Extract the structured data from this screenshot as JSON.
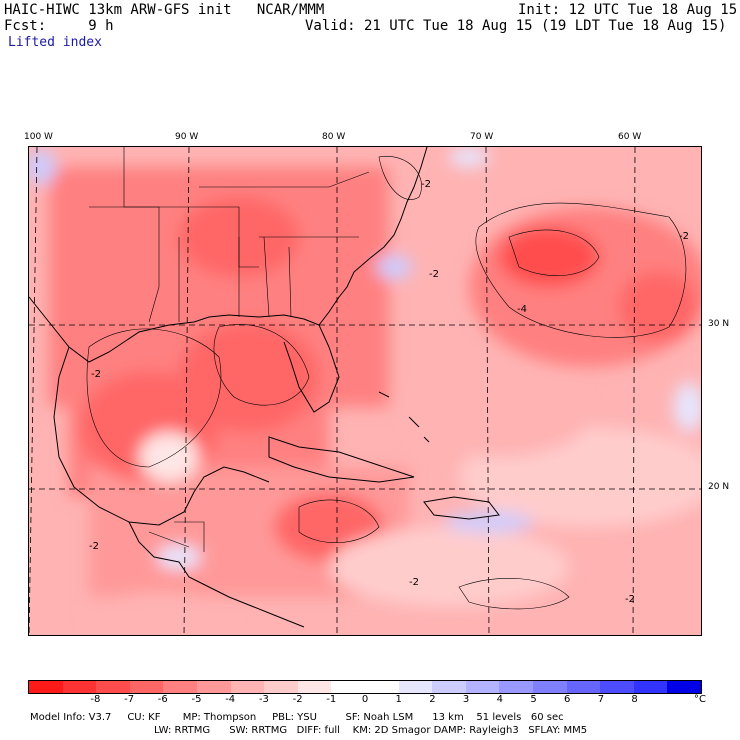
{
  "header": {
    "title": "HAIC-HIWC 13km ARW-GFS init   NCAR/MMM",
    "init": "Init: 12 UTC Tue 18 Aug 15",
    "fcst": "Fcst:     9 h",
    "valid": "Valid: 21 UTC Tue 18 Aug 15 (19 LDT Tue 18 Aug 15)",
    "field": "Lifted index"
  },
  "map": {
    "lon_labels": [
      "100 W",
      "90 W",
      "80 W",
      "70 W",
      "60 W"
    ],
    "lat_labels": [
      "30 N",
      "20 N"
    ],
    "contour_labels": [
      "-2",
      "-2",
      "-2",
      "-2",
      "-4",
      "-2",
      "-2",
      "-2"
    ]
  },
  "colorbar": {
    "colors": [
      "#ff1a1a",
      "#ff3333",
      "#ff4d4d",
      "#ff6666",
      "#ff8080",
      "#ff9999",
      "#ffb3b3",
      "#ffcccc",
      "#ffe6e6",
      "#ffffff",
      "#ffffff",
      "#e6e6ff",
      "#ccccff",
      "#b3b3ff",
      "#9999ff",
      "#8080ff",
      "#6666ff",
      "#4d4dff",
      "#3333ff",
      "#0000e6"
    ],
    "ticks": [
      "-8",
      "-7",
      "-6",
      "-5",
      "-4",
      "-3",
      "-2",
      "-1",
      "0",
      "1",
      "2",
      "3",
      "4",
      "5",
      "6",
      "7",
      "8"
    ],
    "unit": "°C"
  },
  "model_info": {
    "line1": "Model Info: V3.7     CU: KF       MP: Thompson     PBL: YSU         SF: Noah LSM      13 km    51 levels   60 sec",
    "line2": "LW: RRTMG      SW: RRTMG   DIFF: full    KM: 2D Smagor DAMP: Rayleigh3   SFLAY: MM5"
  }
}
